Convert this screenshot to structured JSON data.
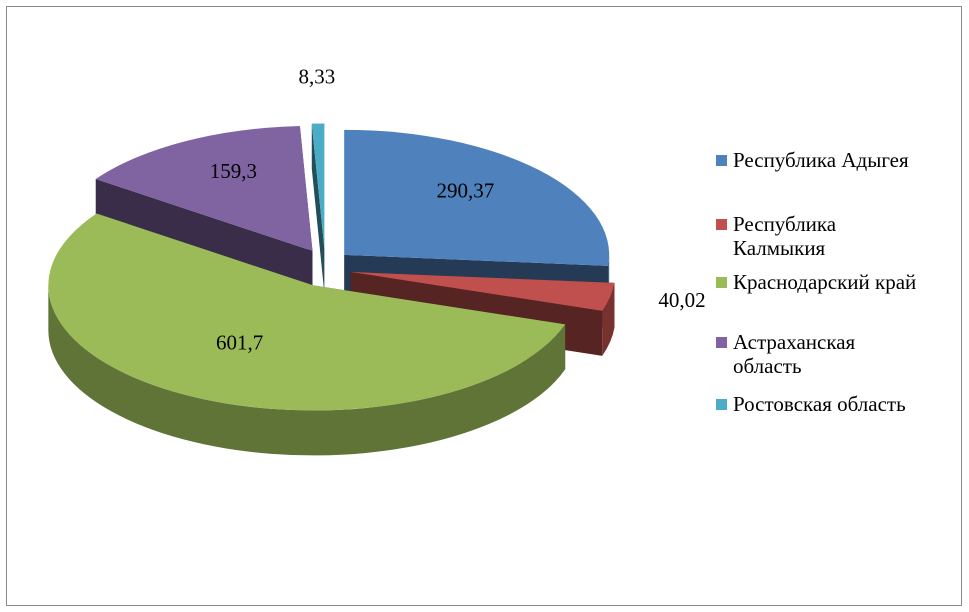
{
  "chart_data": {
    "type": "pie",
    "categories": [
      "Республика Адыгея",
      "Республика Калмыкия",
      "Краснодарский край",
      "Астраханская область",
      "Ростовская область"
    ],
    "values": [
      290.37,
      40.02,
      601.7,
      159.3,
      8.33
    ],
    "value_labels": [
      "290,37",
      "40,02",
      "601,7",
      "159,3",
      "8,33"
    ],
    "colors": [
      "#4f81bd",
      "#c0504d",
      "#9bbb59",
      "#8064a2",
      "#4bacc6"
    ],
    "legend": "right"
  }
}
